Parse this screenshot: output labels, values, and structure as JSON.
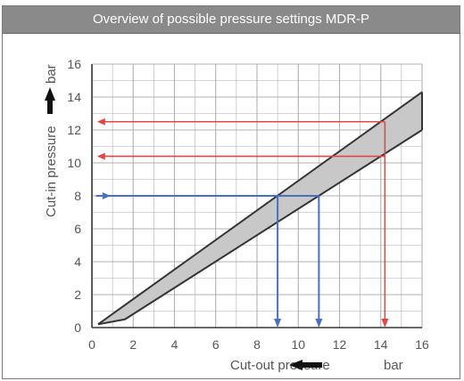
{
  "chart_data": {
    "type": "area",
    "title": "Overview of possible pressure settings MDR-P",
    "xlabel": "Cut-out pressure",
    "xunit": "bar",
    "ylabel": "Cut-in pressure",
    "yunit": "bar",
    "xlim": [
      0,
      16
    ],
    "ylim": [
      0,
      16
    ],
    "xticks": [
      "0",
      "2",
      "4",
      "6",
      "8",
      "10",
      "12",
      "14",
      "16"
    ],
    "yticks": [
      "0",
      "2",
      "4",
      "6",
      "8",
      "10",
      "12",
      "14",
      "16"
    ],
    "grid": true,
    "band_upper": [
      [
        0.3,
        0.2
      ],
      [
        16,
        14.3
      ]
    ],
    "band_lower": [
      [
        0.3,
        0.2
      ],
      [
        1.6,
        0.5
      ],
      [
        16,
        12.0
      ]
    ],
    "examples": [
      {
        "color": "#4a6fc0",
        "cut_in": 8,
        "cut_out_min": 9.0,
        "cut_out_max": 11.0
      },
      {
        "color": "#e04848",
        "cut_in_min": 10.4,
        "cut_in_max": 12.5,
        "cut_out": 14.2
      }
    ],
    "colors": {
      "band_fill": "#c8c8c8",
      "band_edge": "#333333",
      "grid": "#b0b0b0",
      "axis": "#333333",
      "blue": "#4a6fc0",
      "red": "#e04848"
    }
  }
}
